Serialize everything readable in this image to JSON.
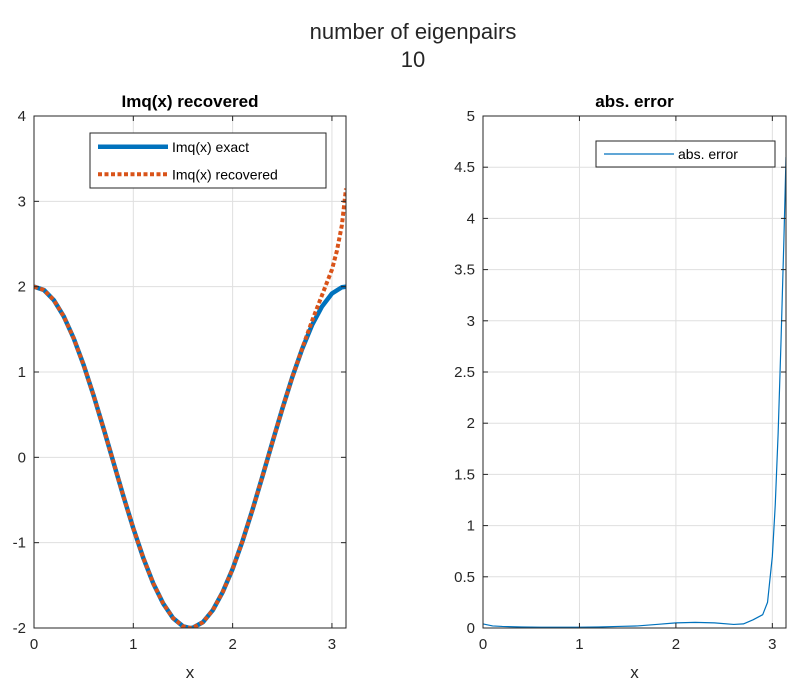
{
  "figure": {
    "suptitle_line1": "number of eigenpairs",
    "suptitle_line2": "10"
  },
  "chart_data": [
    {
      "type": "line",
      "title": "Imq(x) recovered",
      "xlabel": "x",
      "ylabel": "",
      "xlim": [
        0,
        3.14159
      ],
      "ylim": [
        -2,
        4
      ],
      "xticks": [
        0,
        1,
        2,
        3
      ],
      "xtick_labels": [
        "0",
        "1",
        "2",
        "3"
      ],
      "yticks": [
        -2,
        -1,
        0,
        1,
        2,
        3,
        4
      ],
      "ytick_labels": [
        "-2",
        "-1",
        "0",
        "1",
        "2",
        "3",
        "4"
      ],
      "grid": true,
      "legend_position": "top-right",
      "series": [
        {
          "name": "Imq(x) exact",
          "color": "#0072BD",
          "style": "solid",
          "x": [
            0,
            0.1,
            0.2,
            0.3,
            0.4,
            0.5,
            0.6,
            0.7,
            0.8,
            0.9,
            1.0,
            1.1,
            1.2,
            1.3,
            1.4,
            1.5,
            1.5708,
            1.6,
            1.7,
            1.8,
            1.9,
            2.0,
            2.1,
            2.2,
            2.3,
            2.4,
            2.5,
            2.6,
            2.7,
            2.8,
            2.9,
            3.0,
            3.1,
            3.1416
          ],
          "y": [
            2.0,
            1.961,
            1.842,
            1.651,
            1.394,
            1.081,
            0.725,
            0.34,
            -0.058,
            -0.455,
            -0.832,
            -1.177,
            -1.475,
            -1.712,
            -1.884,
            -1.98,
            -2.0,
            -1.997,
            -1.933,
            -1.792,
            -1.579,
            -1.307,
            -0.98,
            -0.614,
            -0.224,
            0.175,
            0.567,
            0.937,
            1.27,
            1.551,
            1.768,
            1.92,
            1.993,
            2.0
          ]
        },
        {
          "name": "Imq(x) recovered",
          "color": "#D95319",
          "style": "dotted",
          "x": [
            0,
            0.1,
            0.2,
            0.3,
            0.4,
            0.5,
            0.6,
            0.7,
            0.8,
            0.9,
            1.0,
            1.1,
            1.2,
            1.3,
            1.4,
            1.5,
            1.5708,
            1.6,
            1.7,
            1.8,
            1.9,
            2.0,
            2.1,
            2.2,
            2.3,
            2.4,
            2.5,
            2.6,
            2.7,
            2.8,
            2.85,
            2.9,
            2.95,
            3.0,
            3.05,
            3.1,
            3.1416
          ],
          "y": [
            2.0,
            1.961,
            1.842,
            1.651,
            1.394,
            1.081,
            0.725,
            0.34,
            -0.058,
            -0.455,
            -0.832,
            -1.177,
            -1.475,
            -1.712,
            -1.884,
            -1.98,
            -2.0,
            -1.997,
            -1.933,
            -1.792,
            -1.579,
            -1.307,
            -0.98,
            -0.614,
            -0.224,
            0.175,
            0.567,
            0.937,
            1.275,
            1.6,
            1.75,
            1.9,
            2.05,
            2.2,
            2.42,
            2.72,
            3.15
          ]
        }
      ]
    },
    {
      "type": "line",
      "title": "abs. error",
      "xlabel": "x",
      "ylabel": "",
      "xlim": [
        0,
        3.14159
      ],
      "ylim": [
        0,
        5
      ],
      "xticks": [
        0,
        1,
        2,
        3
      ],
      "xtick_labels": [
        "0",
        "1",
        "2",
        "3"
      ],
      "yticks": [
        0,
        0.5,
        1,
        1.5,
        2,
        2.5,
        3,
        3.5,
        4,
        4.5,
        5
      ],
      "ytick_labels": [
        "0",
        "0.5",
        "1",
        "1.5",
        "2",
        "2.5",
        "3",
        "3.5",
        "4",
        "4.5",
        "5"
      ],
      "grid": true,
      "legend_position": "top-right",
      "series": [
        {
          "name": "abs. error",
          "color": "#0072BD",
          "style": "solid",
          "x": [
            0,
            0.1,
            0.2,
            0.4,
            0.6,
            0.8,
            1.0,
            1.2,
            1.4,
            1.6,
            1.8,
            2.0,
            2.2,
            2.4,
            2.6,
            2.7,
            2.8,
            2.9,
            2.95,
            3.0,
            3.03,
            3.06,
            3.09,
            3.12,
            3.1416
          ],
          "y": [
            0.04,
            0.02,
            0.015,
            0.01,
            0.008,
            0.007,
            0.008,
            0.01,
            0.015,
            0.02,
            0.035,
            0.05,
            0.055,
            0.05,
            0.035,
            0.04,
            0.08,
            0.13,
            0.25,
            0.7,
            1.2,
            1.9,
            2.8,
            3.8,
            4.6
          ]
        }
      ]
    }
  ]
}
